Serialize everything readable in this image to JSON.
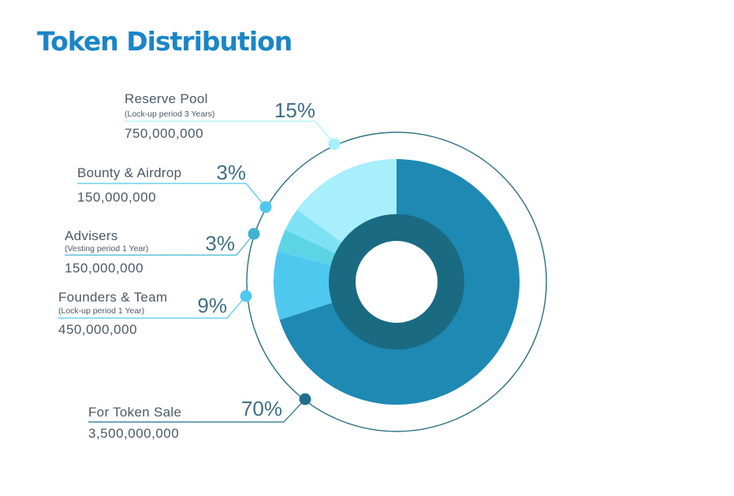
{
  "title": "Token Distribution",
  "colors": {
    "title": "#1a85c8",
    "label": "#4c5866",
    "pct": "#3f6f86",
    "outer_ring": "#2b6f85",
    "inner_ring": "#1a6a82"
  },
  "chart_data": {
    "type": "pie",
    "title": "Token Distribution",
    "slices": [
      {
        "name": "For Token Sale",
        "percent": 70,
        "percent_label": "70%",
        "subtitle": "",
        "amount": "3,500,000,000",
        "color": "#1e89b3",
        "dot_color": "#1f6e8e"
      },
      {
        "name": "Founders & Team",
        "percent": 9,
        "percent_label": "9%",
        "subtitle": "(Lock-up period 1 Year)",
        "amount": "450,000,000",
        "color": "#4fc8ef",
        "dot_color": "#4fc8ef"
      },
      {
        "name": "Advisers",
        "percent": 3,
        "percent_label": "3%",
        "subtitle": "(Vesting period 1 Year)",
        "amount": "150,000,000",
        "color": "#5cd4e6",
        "dot_color": "#3fb3cf"
      },
      {
        "name": "Bounty & Airdrop",
        "percent": 3,
        "percent_label": "3%",
        "subtitle": "",
        "amount": "150,000,000",
        "color": "#7fe2f4",
        "dot_color": "#4fc8ef"
      },
      {
        "name": "Reserve Pool",
        "percent": 15,
        "percent_label": "15%",
        "subtitle": "(Lock-up period 3 Years)",
        "amount": "750,000,000",
        "color": "#a8eefb",
        "dot_color": "#a8eefb"
      }
    ]
  }
}
